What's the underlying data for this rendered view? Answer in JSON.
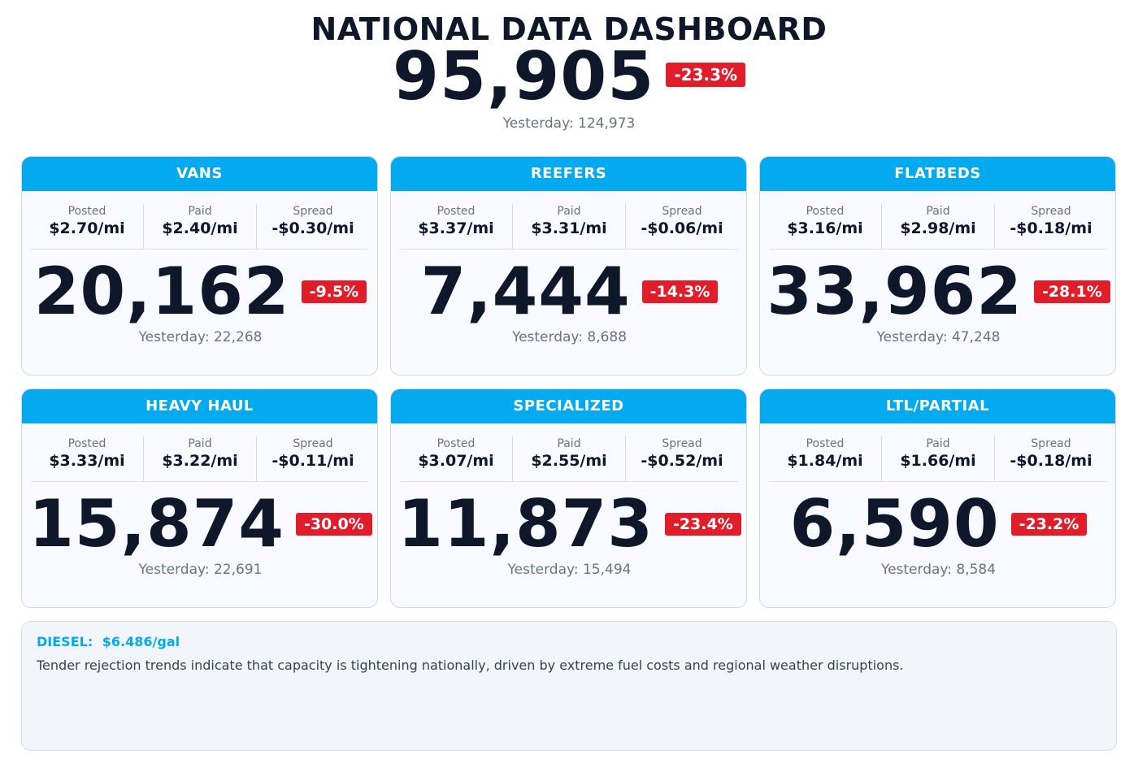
{
  "dashboard": {
    "title": "NATIONAL DATA DASHBOARD",
    "total": "95,905",
    "total_change": "-23.3%",
    "total_yesterday": "Yesterday: 124,973"
  },
  "labels": {
    "posted": "Posted",
    "paid": "Paid",
    "spread": "Spread"
  },
  "cards": [
    {
      "name": "VANS",
      "posted": "$2.70/mi",
      "paid": "$2.40/mi",
      "spread": "-$0.30/mi",
      "count": "20,162",
      "change": "-9.5%",
      "yesterday": "Yesterday: 22,268"
    },
    {
      "name": "REEFERS",
      "posted": "$3.37/mi",
      "paid": "$3.31/mi",
      "spread": "-$0.06/mi",
      "count": "7,444",
      "change": "-14.3%",
      "yesterday": "Yesterday: 8,688"
    },
    {
      "name": "FLATBEDS",
      "posted": "$3.16/mi",
      "paid": "$2.98/mi",
      "spread": "-$0.18/mi",
      "count": "33,962",
      "change": "-28.1%",
      "yesterday": "Yesterday: 47,248"
    },
    {
      "name": "HEAVY HAUL",
      "posted": "$3.33/mi",
      "paid": "$3.22/mi",
      "spread": "-$0.11/mi",
      "count": "15,874",
      "change": "-30.0%",
      "yesterday": "Yesterday: 22,691"
    },
    {
      "name": "SPECIALIZED",
      "posted": "$3.07/mi",
      "paid": "$2.55/mi",
      "spread": "-$0.52/mi",
      "count": "11,873",
      "change": "-23.4%",
      "yesterday": "Yesterday: 15,494"
    },
    {
      "name": "LTL/PARTIAL",
      "posted": "$1.84/mi",
      "paid": "$1.66/mi",
      "spread": "-$0.18/mi",
      "count": "6,590",
      "change": "-23.2%",
      "yesterday": "Yesterday: 8,584"
    }
  ],
  "footer": {
    "diesel_label": "DIESEL:",
    "diesel_value": "$6.486/gal",
    "note": "Tender rejection trends indicate that capacity is tightening nationally, driven by extreme fuel costs and regional weather disruptions."
  },
  "colors": {
    "header": "#03aaf0",
    "badge": "#e11d2a",
    "text": "#0f172a",
    "muted": "#6b7280"
  }
}
